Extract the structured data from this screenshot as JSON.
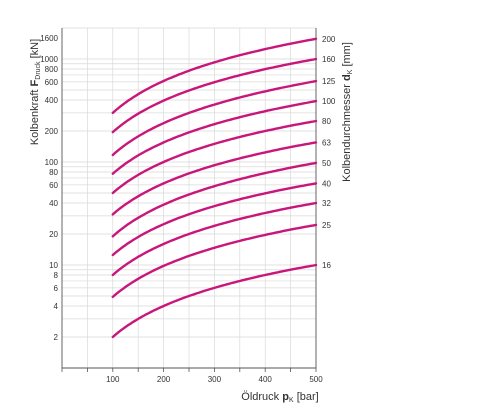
{
  "chart_data": {
    "type": "line",
    "xlabel": {
      "main": "Öldruck ",
      "bold": "p",
      "sub": "K",
      "unit": " [bar]"
    },
    "ylabel_left": {
      "main": "Kolbenkraft ",
      "bold": "F",
      "sub": "Druck",
      "unit": " [kN]"
    },
    "ylabel_right": {
      "main": "Kolbendurchmesser ",
      "bold": "d",
      "sub": "K",
      "unit": " [mm]"
    },
    "x_ticks": [
      "100",
      "200",
      "300",
      "400",
      "500"
    ],
    "y_ticks": [
      "1600",
      "1000",
      "800",
      "600",
      "400",
      "200",
      "100",
      "80",
      "60",
      "40",
      "20",
      "10",
      "8",
      "6",
      "4",
      "2"
    ],
    "y_tick_values": [
      1600,
      1000,
      800,
      600,
      400,
      200,
      100,
      80,
      60,
      40,
      20,
      10,
      8,
      6,
      4,
      2
    ],
    "xlim": [
      0,
      500
    ],
    "ylim": [
      1,
      2000
    ],
    "y_scale": "log",
    "grid": true,
    "line_color": "#c8177b",
    "x_start": 100,
    "series": [
      {
        "name": "200",
        "start": 300,
        "end": 1570
      },
      {
        "name": "160",
        "start": 195,
        "end": 1000
      },
      {
        "name": "125",
        "start": 117,
        "end": 610
      },
      {
        "name": "100",
        "start": 77,
        "end": 390
      },
      {
        "name": "80",
        "start": 50,
        "end": 250
      },
      {
        "name": "63",
        "start": 31,
        "end": 155
      },
      {
        "name": "50",
        "start": 19,
        "end": 98
      },
      {
        "name": "40",
        "start": 12.5,
        "end": 62
      },
      {
        "name": "32",
        "start": 8,
        "end": 40
      },
      {
        "name": "25",
        "start": 4.9,
        "end": 24.5
      },
      {
        "name": "16",
        "start": 2,
        "end": 10
      }
    ]
  }
}
